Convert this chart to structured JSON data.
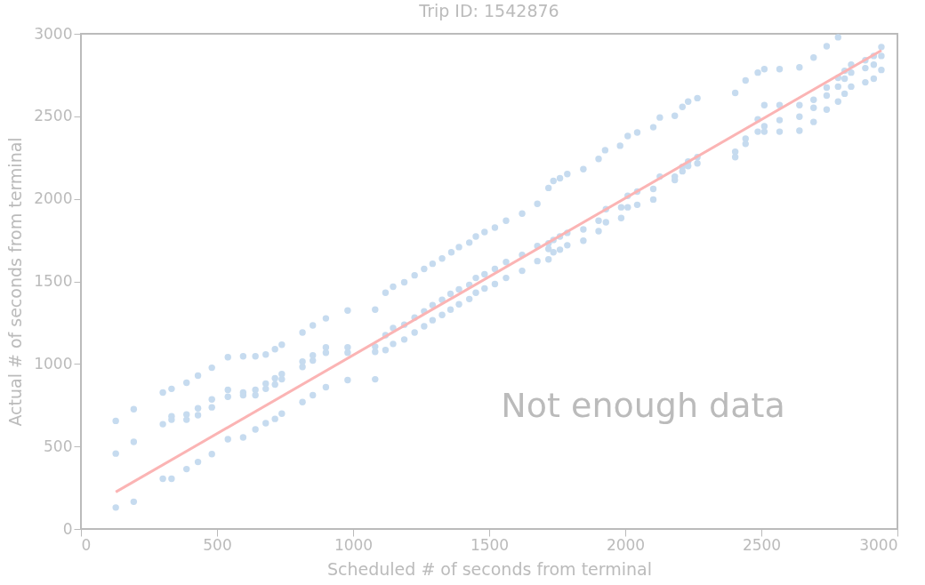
{
  "chart_data": {
    "type": "scatter",
    "title": "Trip ID: 1542876",
    "xlabel": "Scheduled # of seconds from terminal",
    "ylabel": "Actual # of seconds from terminal",
    "annotations": [
      "Not enough data"
    ],
    "xlim": [
      0,
      3000
    ],
    "ylim": [
      0,
      3000
    ],
    "xticks": [
      0,
      500,
      1000,
      1500,
      2000,
      2500,
      3000
    ],
    "yticks": [
      0,
      500,
      1000,
      1500,
      2000,
      2500,
      3000
    ],
    "grid": false,
    "marker": "circle",
    "series": [
      {
        "color": "#c6dbef",
        "x": [
          128,
          128,
          128,
          194,
          194,
          194,
          301,
          301,
          301,
          333,
          333,
          333,
          333,
          388,
          388,
          388,
          388,
          430,
          430,
          430,
          430,
          481,
          481,
          481,
          481,
          540,
          540,
          540,
          540,
          596,
          596,
          596,
          596,
          641,
          641,
          641,
          641,
          679,
          679,
          679,
          679,
          713,
          713,
          713,
          713,
          738,
          738,
          738,
          738,
          814,
          814,
          814,
          814,
          852,
          852,
          852,
          852,
          900,
          900,
          900,
          900,
          980,
          980,
          980,
          980,
          1081,
          1081,
          1081,
          1081,
          1119,
          1119,
          1119,
          1147,
          1147,
          1147,
          1188,
          1188,
          1188,
          1226,
          1226,
          1226,
          1261,
          1261,
          1261,
          1292,
          1292,
          1292,
          1327,
          1327,
          1327,
          1358,
          1358,
          1361,
          1389,
          1389,
          1389,
          1427,
          1427,
          1427,
          1451,
          1451,
          1451,
          1483,
          1483,
          1483,
          1521,
          1521,
          1521,
          1562,
          1562,
          1562,
          1621,
          1621,
          1621,
          1677,
          1677,
          1677,
          1718,
          1718,
          1718,
          1718,
          1736,
          1736,
          1736,
          1760,
          1760,
          1760,
          1787,
          1787,
          1787,
          1846,
          1846,
          1846,
          1902,
          1902,
          1902,
          1926,
          1929,
          1929,
          1981,
          1985,
          1985,
          2009,
          2009,
          2009,
          2044,
          2044,
          2044,
          2103,
          2103,
          2103,
          2127,
          2127,
          2182,
          2182,
          2182,
          2210,
          2210,
          2210,
          2231,
          2231,
          2231,
          2265,
          2265,
          2265,
          2404,
          2404,
          2404,
          2442,
          2442,
          2442,
          2487,
          2487,
          2487,
          2511,
          2511,
          2511,
          2511,
          2567,
          2567,
          2567,
          2567,
          2640,
          2640,
          2640,
          2640,
          2692,
          2692,
          2692,
          2692,
          2740,
          2740,
          2740,
          2740,
          2782,
          2782,
          2782,
          2782,
          2806,
          2806,
          2806,
          2830,
          2830,
          2830,
          2882,
          2882,
          2882,
          2913,
          2913,
          2913,
          2941,
          2941,
          2941
        ],
        "values": [
          655,
          457,
          130,
          726,
          528,
          165,
          827,
          635,
          304,
          849,
          683,
          662,
          304,
          886,
          694,
          662,
          363,
          929,
          731,
          689,
          406,
          977,
          785,
          737,
          454,
          1041,
          843,
          801,
          544,
          1046,
          827,
          811,
          555,
          1046,
          843,
          811,
          603,
          1057,
          881,
          849,
          641,
          1089,
          913,
          875,
          667,
          1116,
          939,
          907,
          699,
          1190,
          1014,
          982,
          769,
          1233,
          1052,
          1020,
          811,
          1276,
          1100,
          1068,
          859,
          1324,
          1100,
          1068,
          902,
          1329,
          1105,
          1073,
          907,
          1431,
          1174,
          1084,
          1468,
          1217,
          1121,
          1495,
          1238,
          1148,
          1537,
          1281,
          1190,
          1575,
          1319,
          1228,
          1607,
          1356,
          1265,
          1639,
          1388,
          1297,
          1425,
          1329,
          1676,
          1708,
          1452,
          1361,
          1735,
          1479,
          1393,
          1772,
          1521,
          1431,
          1799,
          1543,
          1457,
          1826,
          1575,
          1484,
          1868,
          1617,
          1521,
          1911,
          1660,
          1564,
          1970,
          1714,
          1623,
          2066,
          1730,
          1697,
          1633,
          2109,
          1751,
          1676,
          2125,
          1772,
          1692,
          2150,
          1794,
          1719,
          2180,
          1815,
          1746,
          2242,
          1868,
          1804,
          2295,
          1938,
          1858,
          2322,
          1949,
          1884,
          2381,
          2018,
          1949,
          2402,
          2044,
          1964,
          2434,
          2060,
          1996,
          2493,
          2135,
          2503,
          2135,
          2114,
          2557,
          2194,
          2167,
          2589,
          2226,
          2199,
          2610,
          2253,
          2215,
          2642,
          2285,
          2253,
          2717,
          2365,
          2333,
          2765,
          2482,
          2407,
          2786,
          2568,
          2440,
          2407,
          2786,
          2568,
          2477,
          2407,
          2797,
          2568,
          2498,
          2413,
          2856,
          2600,
          2552,
          2466,
          2925,
          2674,
          2626,
          2541,
          2979,
          2733,
          2680,
          2589,
          2776,
          2728,
          2637,
          2813,
          2765,
          2680,
          2840,
          2792,
          2706,
          2866,
          2813,
          2728,
          2920,
          2866,
          2781
        ]
      },
      {
        "type": "line",
        "line_style": "solid",
        "marker": "none",
        "color": "#fbb4b4",
        "x": [
          128,
          2941
        ],
        "values": [
          224,
          2899
        ]
      }
    ]
  }
}
